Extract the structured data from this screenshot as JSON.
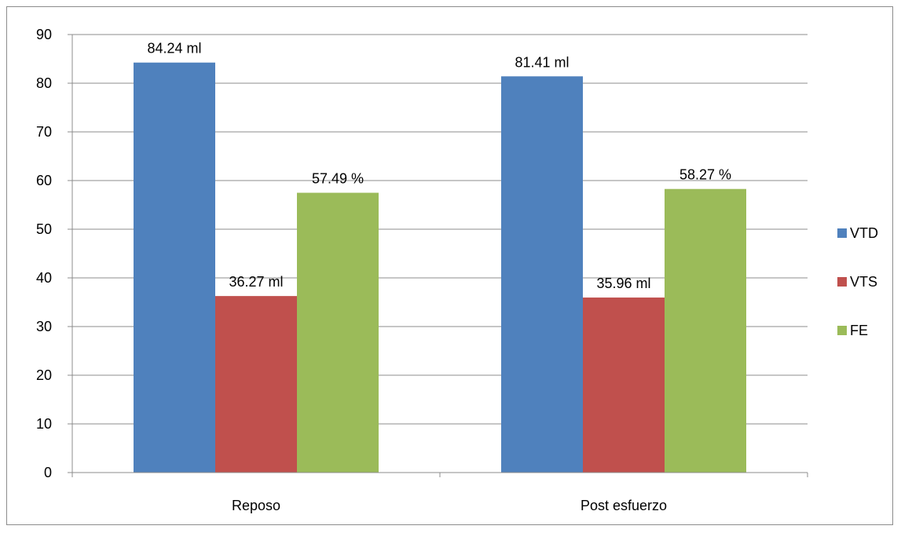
{
  "chart_data": {
    "type": "bar",
    "categories": [
      "Reposo",
      "Post esfuerzo"
    ],
    "series": [
      {
        "name": "VTD",
        "values": [
          84.24,
          81.41
        ],
        "labels": [
          "84.24 ml",
          "81.41 ml"
        ],
        "color": "#4f81bd"
      },
      {
        "name": "VTS",
        "values": [
          36.27,
          35.96
        ],
        "labels": [
          "36.27 ml",
          "35.96 ml"
        ],
        "color": "#c0504d"
      },
      {
        "name": "FE",
        "values": [
          57.49,
          58.27
        ],
        "labels": [
          "57.49 %",
          "58.27 %"
        ],
        "color": "#9bbb59"
      }
    ],
    "ylim": [
      0,
      90
    ],
    "yticks": [
      "0",
      "10",
      "20",
      "30",
      "40",
      "50",
      "60",
      "70",
      "80",
      "90"
    ],
    "grid": true,
    "legend": "right",
    "title": "",
    "xlabel": "",
    "ylabel": ""
  }
}
